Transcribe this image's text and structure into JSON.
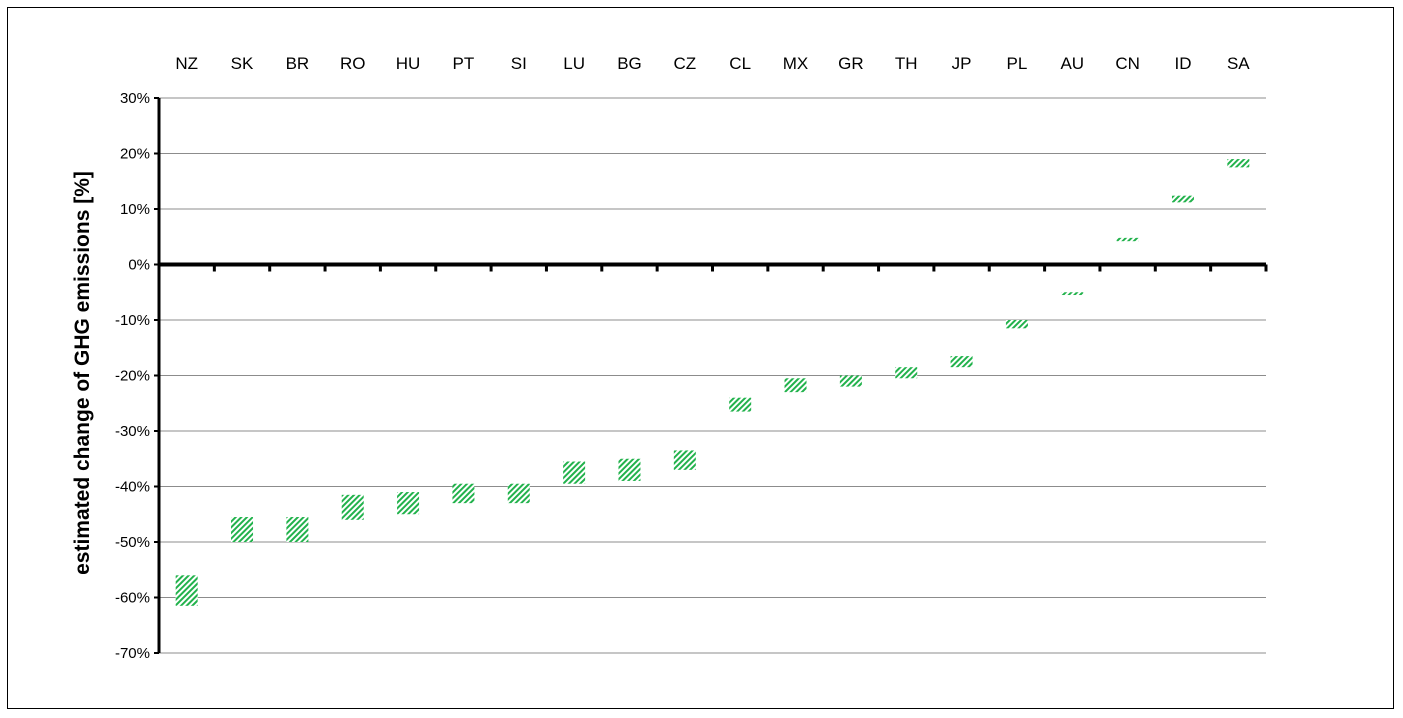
{
  "chart_data": {
    "type": "bar",
    "subtype": "floating-range",
    "title": "",
    "xlabel": "",
    "ylabel": "estimated change of  GHG emissions [%]",
    "categories": [
      "NZ",
      "SK",
      "BR",
      "RO",
      "HU",
      "PT",
      "SI",
      "LU",
      "BG",
      "CZ",
      "CL",
      "MX",
      "GR",
      "TH",
      "JP",
      "PL",
      "AU",
      "CN",
      "ID",
      "SA"
    ],
    "ranges": [
      [
        -61.5,
        -56.0
      ],
      [
        -50.0,
        -45.5
      ],
      [
        -50.0,
        -45.5
      ],
      [
        -46.0,
        -41.5
      ],
      [
        -45.0,
        -41.0
      ],
      [
        -43.0,
        -39.5
      ],
      [
        -43.0,
        -39.5
      ],
      [
        -39.5,
        -35.5
      ],
      [
        -39.0,
        -35.0
      ],
      [
        -37.0,
        -33.5
      ],
      [
        -26.5,
        -24.0
      ],
      [
        -23.0,
        -20.5
      ],
      [
        -22.0,
        -20.0
      ],
      [
        -20.5,
        -18.5
      ],
      [
        -18.5,
        -16.5
      ],
      [
        -11.5,
        -10.0
      ],
      [
        -5.5,
        -5.0
      ],
      [
        4.2,
        4.8
      ],
      [
        11.2,
        12.4
      ],
      [
        17.5,
        19.0
      ]
    ],
    "yticks": [
      "30%",
      "20%",
      "10%",
      "0%",
      "-10%",
      "-20%",
      "-30%",
      "-40%",
      "-50%",
      "-60%",
      "-70%"
    ],
    "ytick_values": [
      30,
      20,
      10,
      0,
      -10,
      -20,
      -30,
      -40,
      -50,
      -60,
      -70
    ],
    "ylim": [
      -70,
      30
    ],
    "grid": true,
    "legend": "none",
    "colors": {
      "bar": "#22b24c",
      "grid": "#8c8c8c",
      "axis": "#000000"
    }
  }
}
